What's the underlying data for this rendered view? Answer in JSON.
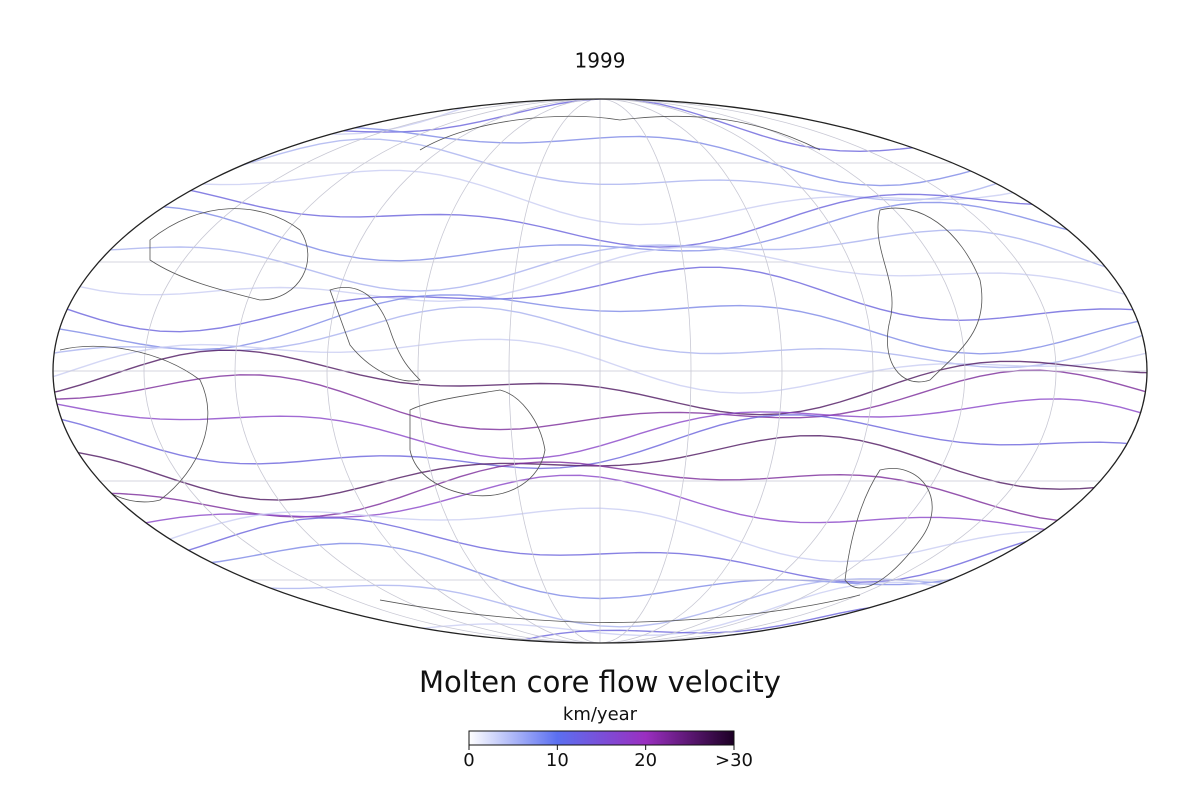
{
  "title": "1999",
  "colorbar": {
    "title": "Molten core flow velocity",
    "unit": "km/year",
    "range": [
      0,
      30
    ],
    "ticks": [
      0,
      10,
      20,
      {
        "value": 30,
        "label": ">30"
      }
    ],
    "colors": [
      "#ffffff",
      "#5b6ff0",
      "#9a2fc0",
      "#1c0024"
    ]
  }
}
